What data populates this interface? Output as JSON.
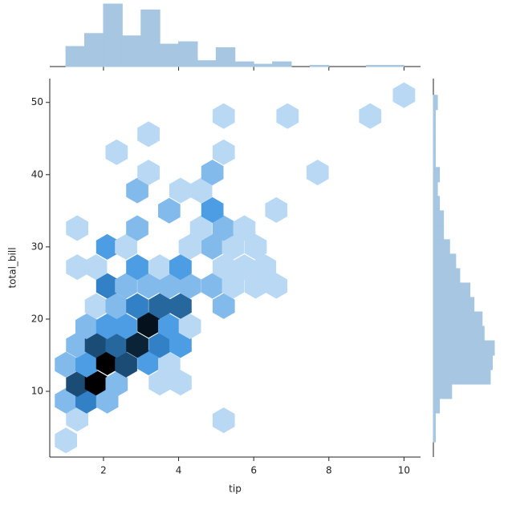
{
  "chart_data": {
    "type": "hexbin",
    "x_label": "tip",
    "y_label": "total_bill",
    "xlim": [
      0.57,
      10.44
    ],
    "ylim": [
      0.9,
      53.3
    ],
    "xticks": [
      2,
      4,
      6,
      8,
      10
    ],
    "yticks": [
      10,
      20,
      30,
      40,
      50
    ],
    "cmap": [
      "#eef5fc",
      "#3a93e0",
      "#123a5c",
      "#000000"
    ],
    "hist_color": "#a6c6e1",
    "x": [
      1.0,
      1.3,
      5.2,
      1.0,
      1.55,
      2.1,
      1.3,
      1.8,
      2.35,
      3.5,
      4.05,
      1.0,
      1.55,
      2.1,
      2.6,
      3.2,
      3.75,
      1.3,
      1.8,
      2.35,
      2.9,
      3.5,
      4.05,
      1.55,
      2.1,
      2.6,
      3.2,
      3.75,
      4.3,
      1.8,
      2.35,
      2.9,
      3.5,
      4.05,
      5.2,
      2.1,
      2.6,
      3.2,
      3.75,
      4.3,
      4.9,
      5.45,
      6.05,
      6.6,
      1.3,
      1.8,
      2.9,
      3.5,
      4.05,
      5.2,
      5.75,
      6.3,
      2.1,
      2.6,
      4.3,
      4.9,
      5.45,
      6.05,
      1.3,
      2.9,
      4.6,
      5.2,
      5.75,
      3.75,
      4.9,
      6.6,
      2.9,
      4.05,
      4.6,
      3.2,
      4.9,
      7.7,
      2.35,
      5.2,
      3.2,
      5.2,
      6.9,
      9.1,
      10.0
    ],
    "y": [
      3.2,
      6.2,
      6.0,
      8.7,
      8.7,
      8.7,
      11.0,
      11.2,
      11.0,
      11.2,
      11.2,
      13.7,
      13.7,
      14.0,
      13.7,
      14.0,
      13.7,
      16.4,
      16.4,
      16.4,
      16.4,
      16.4,
      16.4,
      19.0,
      19.0,
      19.0,
      19.2,
      19.0,
      19.0,
      21.8,
      21.8,
      21.8,
      21.8,
      21.8,
      21.8,
      24.6,
      24.6,
      24.6,
      24.6,
      24.6,
      24.6,
      24.6,
      24.6,
      24.6,
      27.2,
      27.2,
      27.2,
      27.2,
      27.2,
      27.2,
      27.2,
      27.2,
      30.0,
      30.0,
      30.0,
      30.0,
      30.0,
      30.0,
      32.6,
      32.6,
      32.6,
      32.6,
      32.6,
      35.0,
      35.1,
      35.1,
      37.8,
      37.8,
      37.8,
      40.3,
      40.3,
      40.3,
      43.1,
      43.1,
      45.6,
      48.1,
      48.1,
      48.1,
      51.0
    ],
    "counts": [
      1,
      1,
      1,
      2,
      4,
      2,
      6,
      10,
      2,
      1,
      1,
      2,
      3,
      10,
      6,
      3,
      1,
      2,
      6,
      5,
      8,
      4,
      3,
      2,
      3,
      3,
      9,
      3,
      1,
      1,
      2,
      4,
      5,
      5,
      2,
      4,
      2,
      2,
      2,
      2,
      2,
      1,
      1,
      1,
      1,
      1,
      3,
      1,
      3,
      1,
      1,
      1,
      3,
      1,
      1,
      2,
      1,
      1,
      1,
      2,
      1,
      2,
      1,
      2,
      3,
      1,
      2,
      1,
      1,
      1,
      2,
      1,
      1,
      1,
      1,
      1,
      1,
      1,
      1
    ],
    "x_hist": {
      "bins": [
        1.0,
        1.5,
        2.0,
        2.5,
        3.0,
        3.5,
        4.0,
        4.5,
        5.0,
        5.5,
        6.0,
        6.5,
        7.0,
        7.5,
        8.0,
        8.5,
        9.0,
        9.5,
        10.0
      ],
      "counts": [
        17,
        28,
        53,
        26,
        48,
        19,
        21,
        5,
        16,
        4,
        2,
        4,
        0,
        1,
        0,
        0,
        1,
        1
      ]
    },
    "y_hist": {
      "bins": [
        3,
        5,
        7,
        9,
        11,
        13,
        15,
        17,
        19,
        21,
        23,
        25,
        27,
        29,
        31,
        33,
        35,
        37,
        39,
        41,
        43,
        45,
        47,
        49,
        51
      ],
      "counts": [
        1,
        1,
        3,
        9,
        28,
        29,
        30,
        25,
        24,
        20,
        18,
        13,
        11,
        8,
        5,
        5,
        3,
        2,
        3,
        1,
        1,
        1,
        1,
        2
      ]
    }
  }
}
